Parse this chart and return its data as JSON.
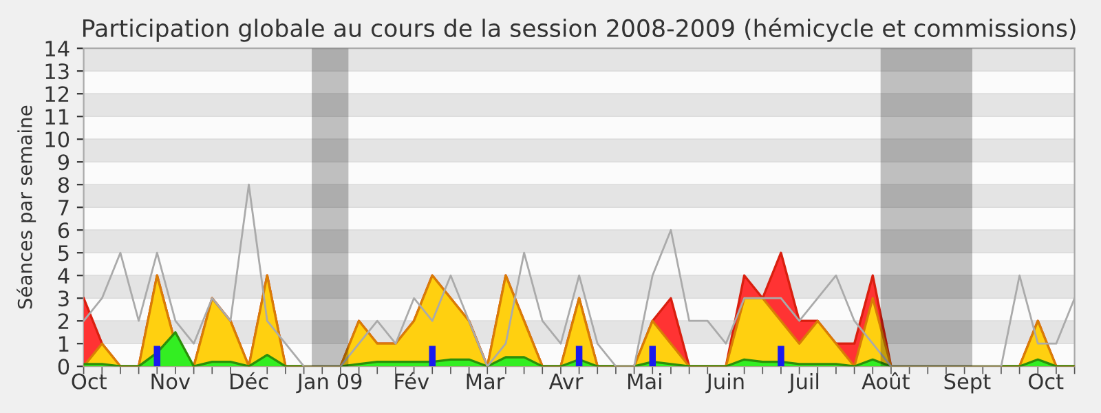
{
  "chart_data": {
    "type": "area",
    "title": "Participation globale au cours de la session 2008-2009 (hémicycle et commissions)",
    "ylabel": "Séances par semaine",
    "x": [
      "2008-09-29",
      "2008-10-06",
      "2008-10-13",
      "2008-10-20",
      "2008-10-27",
      "2008-11-03",
      "2008-11-10",
      "2008-11-17",
      "2008-11-24",
      "2008-12-01",
      "2008-12-08",
      "2008-12-15",
      "2008-12-22",
      "2008-12-29",
      "2009-01-05",
      "2009-01-12",
      "2009-01-19",
      "2009-01-26",
      "2009-02-02",
      "2009-02-09",
      "2009-02-16",
      "2009-02-23",
      "2009-03-02",
      "2009-03-09",
      "2009-03-16",
      "2009-03-23",
      "2009-03-30",
      "2009-04-06",
      "2009-04-13",
      "2009-04-20",
      "2009-04-27",
      "2009-05-04",
      "2009-05-11",
      "2009-05-18",
      "2009-05-25",
      "2009-06-01",
      "2009-06-08",
      "2009-06-15",
      "2009-06-22",
      "2009-06-29",
      "2009-07-06",
      "2009-07-13",
      "2009-07-20",
      "2009-07-27",
      "2009-08-03",
      "2009-08-10",
      "2009-08-17",
      "2009-08-24",
      "2009-08-31",
      "2009-09-07",
      "2009-09-14",
      "2009-09-21",
      "2009-09-28",
      "2009-10-05",
      "2009-10-12"
    ],
    "series": [
      {
        "color": "#ff3333",
        "values": [
          3,
          1,
          0,
          0,
          4,
          1,
          0,
          3,
          2,
          0,
          4,
          0,
          0,
          0,
          0,
          2,
          1,
          1,
          2,
          4,
          3,
          2,
          0,
          4,
          2,
          0,
          0,
          3,
          0,
          0,
          0,
          2,
          3,
          0,
          0,
          0,
          4,
          3,
          5,
          2,
          2,
          1,
          1,
          4,
          0,
          0,
          0,
          0,
          0,
          0,
          0,
          0,
          2,
          0,
          0
        ]
      },
      {
        "type": "area",
        "color": "#ffd010",
        "values": [
          0,
          1,
          0,
          0,
          4,
          1,
          0,
          3,
          2,
          0,
          4,
          0,
          0,
          0,
          0,
          2,
          1,
          1,
          2,
          4,
          3,
          2,
          0,
          4,
          2,
          0,
          0,
          3,
          0,
          0,
          0,
          2,
          1,
          0,
          0,
          0,
          3,
          3,
          2,
          1,
          2,
          1,
          0,
          3,
          0,
          0,
          0,
          0,
          0,
          0,
          0,
          0,
          2,
          0,
          0
        ]
      },
      {
        "type": "area",
        "color": "#33ee22",
        "values": [
          0.1,
          0.1,
          0,
          0,
          0.6,
          1.5,
          0,
          0.2,
          0.2,
          0,
          0.5,
          0,
          0,
          0,
          0,
          0.1,
          0.2,
          0.2,
          0.2,
          0.2,
          0.3,
          0.3,
          0,
          0.4,
          0.4,
          0,
          0,
          0.3,
          0,
          0,
          0,
          0.2,
          0.1,
          0,
          0,
          0,
          0.3,
          0.2,
          0.2,
          0.1,
          0.1,
          0.1,
          0,
          0.3,
          0,
          0,
          0,
          0,
          0,
          0,
          0,
          0,
          0.3,
          0,
          0
        ]
      },
      {
        "type": "line",
        "color": "#aaaaaa",
        "values": [
          2,
          3,
          5,
          2,
          5,
          2,
          1,
          3,
          2,
          8,
          2,
          1,
          0,
          0,
          0,
          1,
          2,
          1,
          3,
          2,
          4,
          2,
          0,
          1,
          5,
          2,
          1,
          4,
          1,
          0,
          0,
          4,
          6,
          2,
          2,
          1,
          3,
          3,
          3,
          2,
          3,
          4,
          2,
          1,
          0,
          0,
          0,
          0,
          0,
          0,
          0,
          4,
          1,
          1,
          3
        ]
      },
      {
        "type": "bar",
        "color": "#1a1aee",
        "values": [
          null,
          null,
          null,
          null,
          0.9,
          null,
          null,
          null,
          null,
          null,
          null,
          null,
          null,
          null,
          null,
          null,
          null,
          null,
          null,
          0.9,
          null,
          null,
          null,
          null,
          null,
          null,
          null,
          0.9,
          null,
          null,
          null,
          0.9,
          null,
          null,
          null,
          null,
          null,
          null,
          0.9,
          null,
          null,
          null,
          null,
          null,
          null,
          null,
          null,
          null,
          null,
          null,
          null,
          null,
          null,
          null,
          null
        ]
      }
    ],
    "bands": [
      {
        "axis": "x",
        "from": "2008-12-25",
        "to": "2009-01-08",
        "color": "#000000"
      },
      {
        "axis": "x",
        "from": "2009-07-30",
        "to": "2009-09-03",
        "color": "#000000"
      }
    ],
    "xlim": [
      "2008-09-29",
      "2009-10-12"
    ],
    "xticks": [
      {
        "value": "2008-10-01",
        "label": "Oct"
      },
      {
        "value": "2008-11-01",
        "label": "Nov"
      },
      {
        "value": "2008-12-01",
        "label": "Déc"
      },
      {
        "value": "2009-01-01",
        "label": "Jan 09"
      },
      {
        "value": "2009-02-01",
        "label": "Fév"
      },
      {
        "value": "2009-03-01",
        "label": "Mar"
      },
      {
        "value": "2009-04-01",
        "label": "Avr"
      },
      {
        "value": "2009-05-01",
        "label": "Mai"
      },
      {
        "value": "2009-06-01",
        "label": "Juin"
      },
      {
        "value": "2009-07-01",
        "label": "Juil"
      },
      {
        "value": "2009-08-01",
        "label": "Août"
      },
      {
        "value": "2009-09-01",
        "label": "Sept"
      },
      {
        "value": "2009-10-01",
        "label": "Oct"
      }
    ],
    "ylim": [
      0,
      14
    ],
    "yticks": [
      0,
      1,
      2,
      3,
      4,
      5,
      6,
      7,
      8,
      9,
      10,
      11,
      12,
      13,
      14
    ],
    "grid": "y"
  }
}
